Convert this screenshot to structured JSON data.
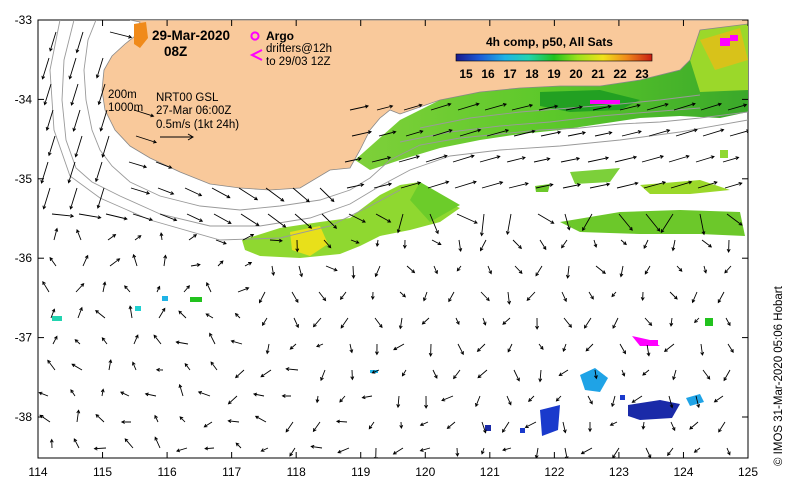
{
  "map": {
    "date": "29-Mar-2020",
    "time": "08Z",
    "argo_label": "Argo",
    "drifters_label": "drifters@12h",
    "drifters_to": "to 29/03 12Z",
    "contour_200": "200m",
    "contour_1000": "1000m",
    "product": "NRT00 GSL",
    "product_time": "27-Mar 06:00Z",
    "scale_text": "0.5m/s (1kt 24h)",
    "colorbar_title": "4h comp, p50, All Sats",
    "colorbar_ticks": [
      "15",
      "16",
      "17",
      "18",
      "19",
      "20",
      "21",
      "22",
      "23"
    ],
    "credit": "© IMOS 31-Mar-2020 05:06 Hobart",
    "x_ticks": [
      "114",
      "115",
      "116",
      "117",
      "118",
      "119",
      "120",
      "121",
      "122",
      "123",
      "124",
      "125"
    ],
    "y_ticks": [
      "-33",
      "-34",
      "-35",
      "-36",
      "-37",
      "-38"
    ],
    "colors": {
      "land": "#f9c99b",
      "argo": "#ff00ff",
      "sst_low": "#000080",
      "sst_mid": "#00d000",
      "sst_high": "#c00000"
    }
  }
}
